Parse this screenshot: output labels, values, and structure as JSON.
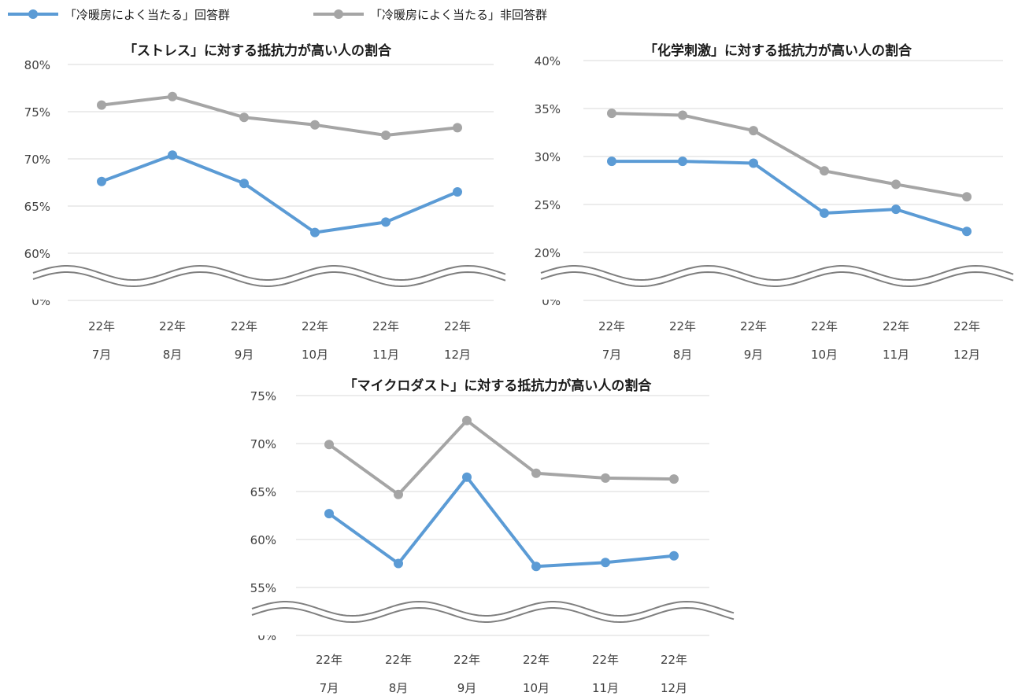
{
  "legend": [
    {
      "label": "「冷暖房によく当たる」回答群",
      "color": "#5b9bd5"
    },
    {
      "label": "「冷暖房によく当たる」非回答群",
      "color": "#a5a5a5"
    }
  ],
  "chart_data": [
    {
      "type": "line",
      "title": "「ストレス」に対する抵抗力が高い人の割合",
      "categories_year": [
        "22年",
        "22年",
        "22年",
        "22年",
        "22年",
        "22年"
      ],
      "categories_month": [
        "7月",
        "8月",
        "9月",
        "10月",
        "11月",
        "12月"
      ],
      "y_ticks": [
        "80%",
        "75%",
        "70%",
        "65%",
        "60%"
      ],
      "y_zero_label": "0%",
      "ylim": [
        60,
        80
      ],
      "axis_break": true,
      "series": [
        {
          "name": "「冷暖房によく当たる」回答群",
          "values": [
            67.6,
            70.4,
            67.4,
            62.2,
            63.3,
            66.5
          ]
        },
        {
          "name": "「冷暖房によく当たる」非回答群",
          "values": [
            75.7,
            76.6,
            74.4,
            73.6,
            72.5,
            73.3
          ]
        }
      ]
    },
    {
      "type": "line",
      "title": "「化学刺激」に対する抵抗力が高い人の割合",
      "categories_year": [
        "22年",
        "22年",
        "22年",
        "22年",
        "22年",
        "22年"
      ],
      "categories_month": [
        "7月",
        "8月",
        "9月",
        "10月",
        "11月",
        "12月"
      ],
      "y_ticks": [
        "40%",
        "35%",
        "30%",
        "25%",
        "20%"
      ],
      "y_zero_label": "0%",
      "ylim": [
        20,
        40
      ],
      "axis_break": true,
      "series": [
        {
          "name": "「冷暖房によく当たる」回答群",
          "values": [
            29.5,
            29.5,
            29.3,
            24.1,
            24.5,
            22.2
          ]
        },
        {
          "name": "「冷暖房によく当たる」非回答群",
          "values": [
            34.5,
            34.3,
            32.7,
            28.5,
            27.1,
            25.8
          ]
        }
      ]
    },
    {
      "type": "line",
      "title": "「マイクロダスト」に対する抵抗力が高い人の割合",
      "categories_year": [
        "22年",
        "22年",
        "22年",
        "22年",
        "22年",
        "22年"
      ],
      "categories_month": [
        "7月",
        "8月",
        "9月",
        "10月",
        "11月",
        "12月"
      ],
      "y_ticks": [
        "75%",
        "70%",
        "65%",
        "60%",
        "55%"
      ],
      "y_zero_label": "0%",
      "ylim": [
        55,
        75
      ],
      "axis_break": true,
      "series": [
        {
          "name": "「冷暖房によく当たる」回答群",
          "values": [
            62.7,
            57.5,
            66.5,
            57.2,
            57.6,
            58.3
          ]
        },
        {
          "name": "「冷暖房によく当たる」非回答群",
          "values": [
            69.9,
            64.7,
            72.4,
            66.9,
            66.4,
            66.3
          ]
        }
      ]
    }
  ]
}
